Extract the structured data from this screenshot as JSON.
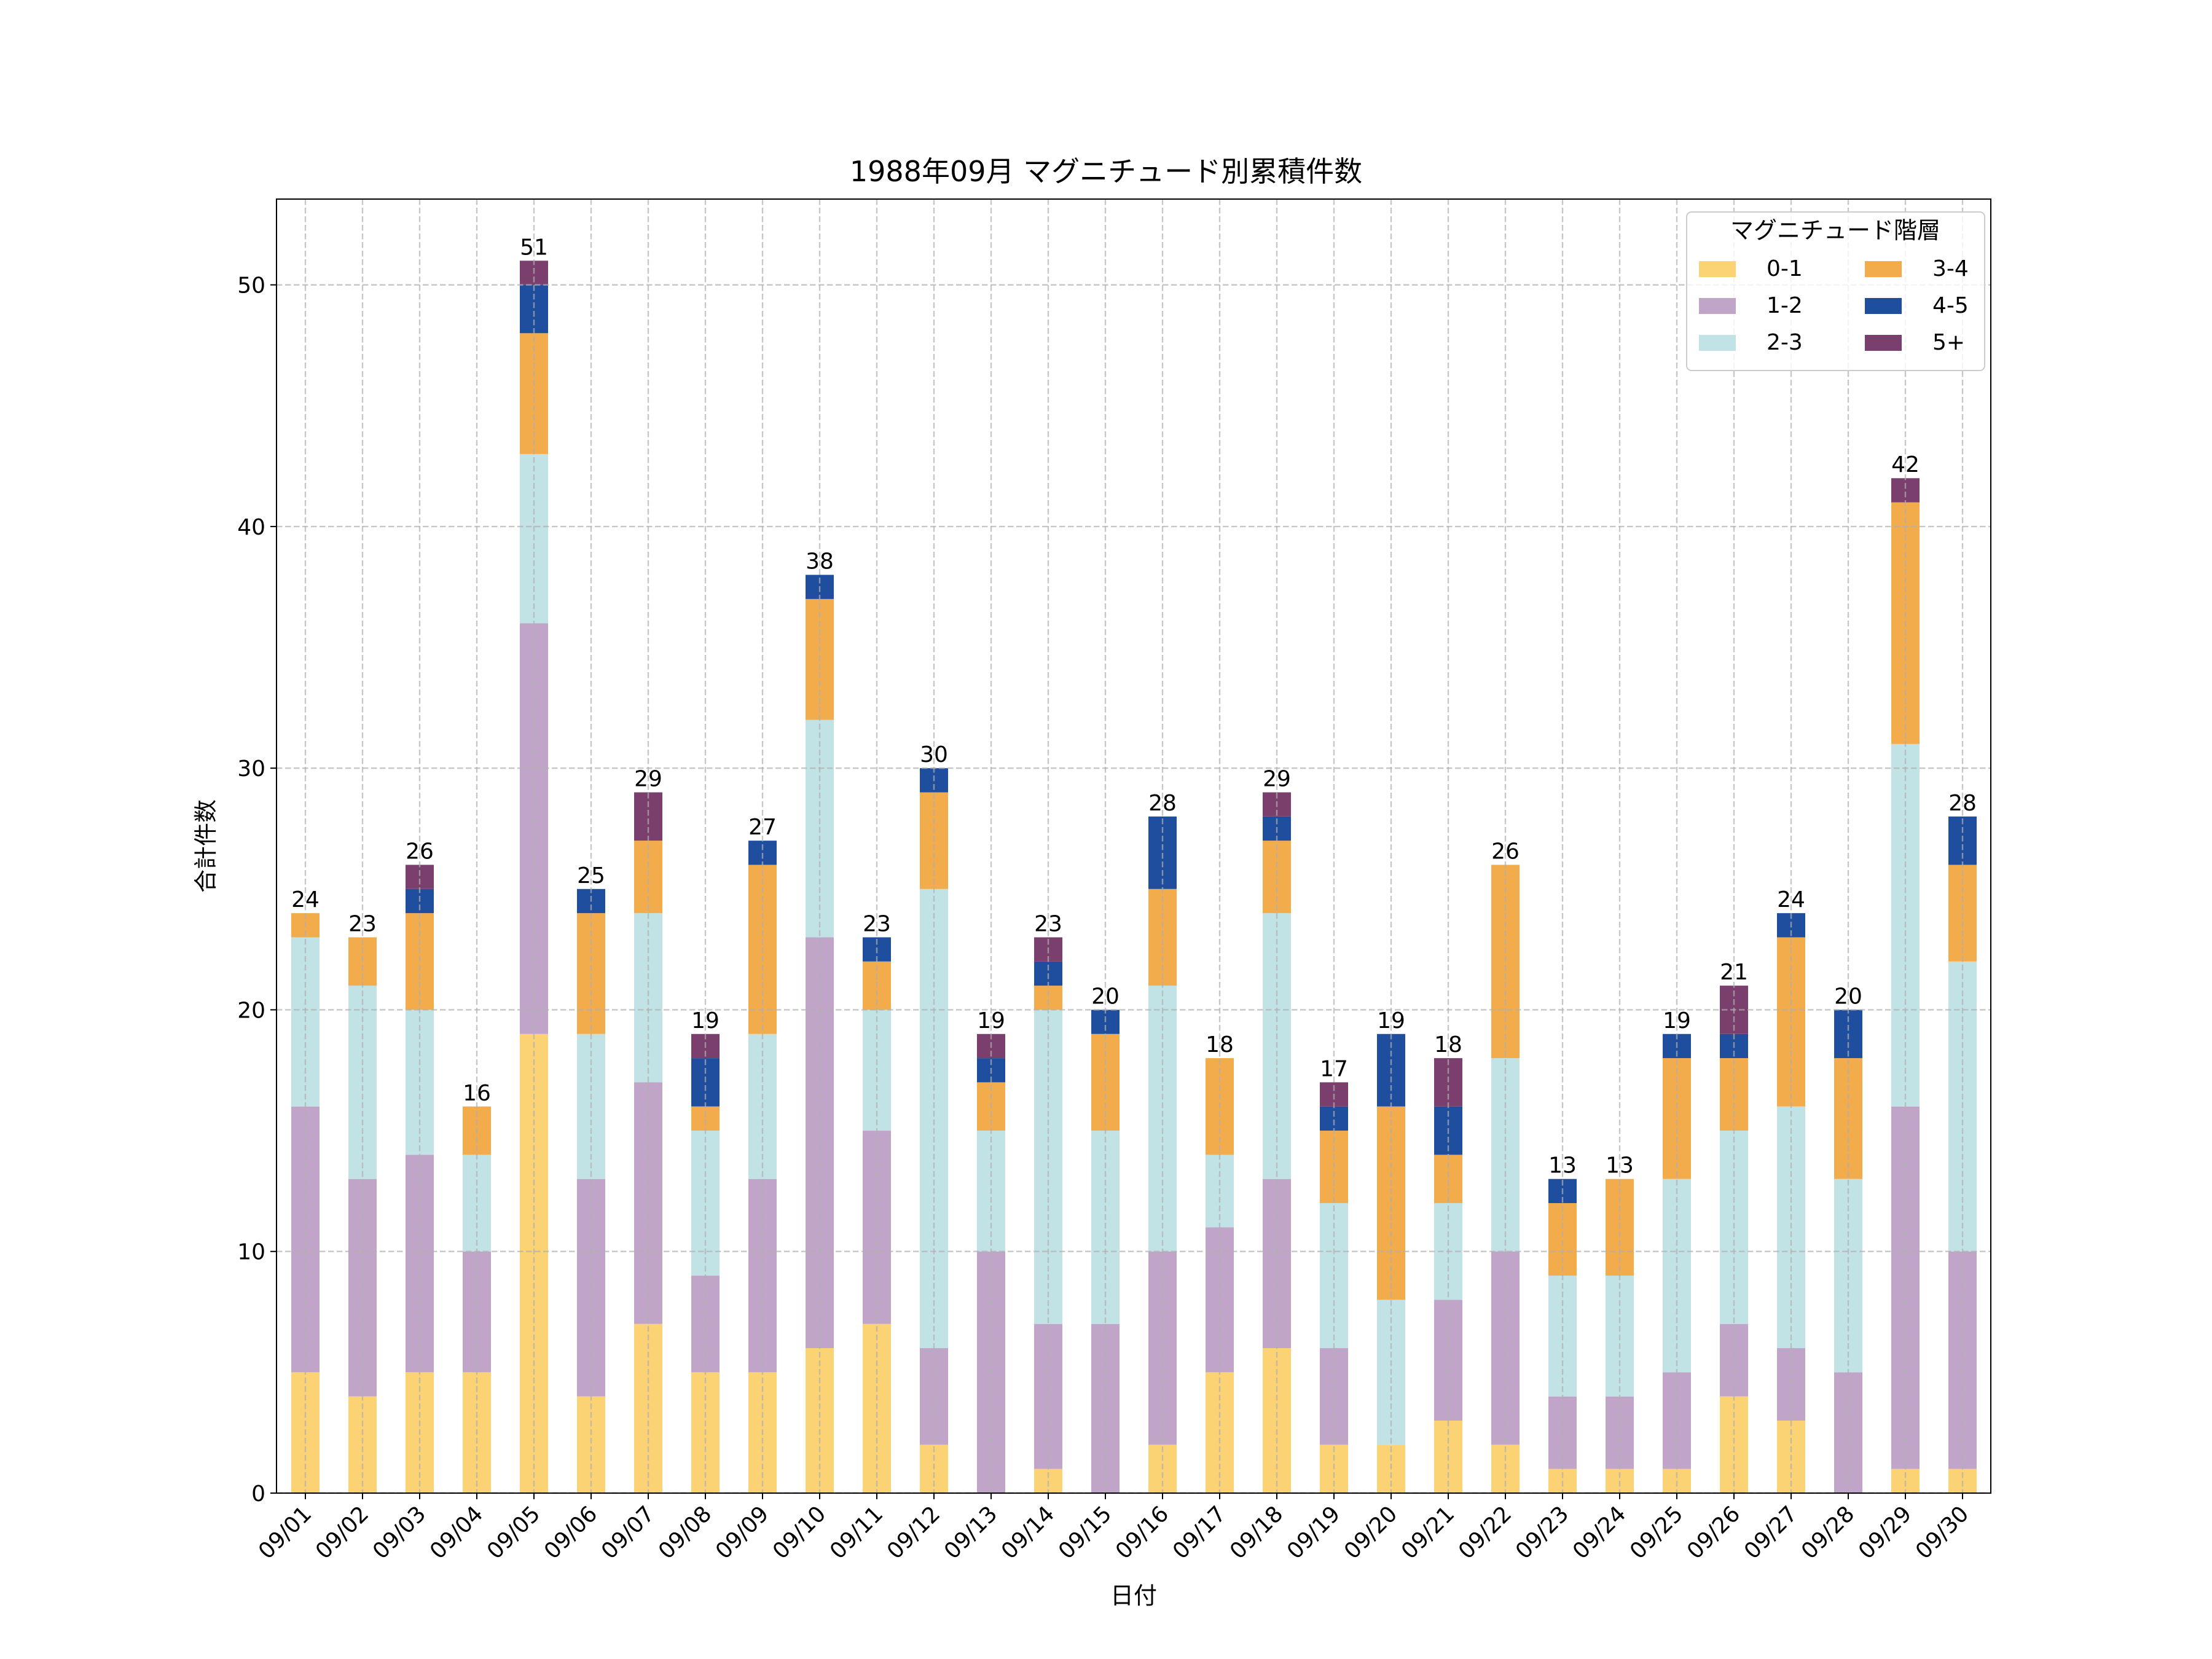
{
  "chart_data": {
    "type": "bar",
    "stacked": true,
    "title": "1988年09月 マグニチュード別累積件数",
    "xlabel": "日付",
    "ylabel": "合計件数",
    "ylim": [
      0,
      53.55
    ],
    "yticks": [
      0,
      10,
      20,
      30,
      40,
      50
    ],
    "grid": true,
    "legend": {
      "title": "マグニチュード階層",
      "position": "top-right",
      "columns": 2
    },
    "categories": [
      "09/01",
      "09/02",
      "09/03",
      "09/04",
      "09/05",
      "09/06",
      "09/07",
      "09/08",
      "09/09",
      "09/10",
      "09/11",
      "09/12",
      "09/13",
      "09/14",
      "09/15",
      "09/16",
      "09/17",
      "09/18",
      "09/19",
      "09/20",
      "09/21",
      "09/22",
      "09/23",
      "09/24",
      "09/25",
      "09/26",
      "09/27",
      "09/28",
      "09/29",
      "09/30"
    ],
    "series": [
      {
        "name": "0-1",
        "color": "#FBD374",
        "values": [
          5,
          4,
          5,
          5,
          19,
          4,
          7,
          5,
          5,
          6,
          7,
          2,
          0,
          1,
          0,
          2,
          5,
          6,
          2,
          2,
          3,
          2,
          1,
          1,
          1,
          4,
          3,
          0,
          1,
          1
        ]
      },
      {
        "name": "1-2",
        "color": "#C1A5C9",
        "values": [
          11,
          9,
          9,
          5,
          17,
          9,
          10,
          4,
          8,
          17,
          8,
          4,
          10,
          6,
          7,
          8,
          6,
          7,
          4,
          0,
          5,
          8,
          3,
          3,
          4,
          3,
          3,
          5,
          15,
          9
        ]
      },
      {
        "name": "2-3",
        "color": "#C1E3E6",
        "values": [
          7,
          8,
          6,
          4,
          7,
          6,
          7,
          6,
          6,
          9,
          5,
          19,
          5,
          13,
          8,
          11,
          3,
          11,
          6,
          6,
          4,
          8,
          5,
          5,
          8,
          8,
          10,
          8,
          15,
          12
        ]
      },
      {
        "name": "3-4",
        "color": "#F3AC4C",
        "values": [
          1,
          2,
          4,
          2,
          5,
          5,
          3,
          1,
          7,
          5,
          2,
          4,
          2,
          1,
          4,
          4,
          4,
          3,
          3,
          8,
          2,
          8,
          3,
          4,
          5,
          3,
          7,
          5,
          10,
          4
        ]
      },
      {
        "name": "4-5",
        "color": "#1F4E9E",
        "values": [
          0,
          0,
          1,
          0,
          2,
          1,
          0,
          2,
          1,
          1,
          1,
          1,
          1,
          1,
          1,
          3,
          0,
          1,
          1,
          3,
          2,
          0,
          1,
          0,
          1,
          1,
          1,
          2,
          0,
          2
        ]
      },
      {
        "name": "5+",
        "color": "#7B3F6E",
        "values": [
          0,
          0,
          1,
          0,
          1,
          0,
          2,
          1,
          0,
          0,
          0,
          0,
          1,
          1,
          0,
          0,
          0,
          1,
          1,
          0,
          2,
          0,
          0,
          0,
          0,
          2,
          0,
          0,
          1,
          0
        ]
      }
    ],
    "totals": [
      24,
      23,
      26,
      16,
      51,
      25,
      29,
      19,
      27,
      38,
      23,
      30,
      19,
      23,
      20,
      28,
      18,
      29,
      17,
      19,
      18,
      26,
      13,
      13,
      19,
      21,
      24,
      20,
      42,
      28
    ]
  }
}
